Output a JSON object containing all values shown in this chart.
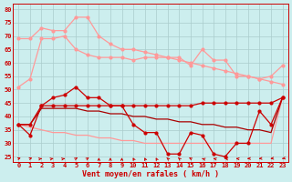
{
  "x": [
    0,
    1,
    2,
    3,
    4,
    5,
    6,
    7,
    8,
    9,
    10,
    11,
    12,
    13,
    14,
    15,
    16,
    17,
    18,
    19,
    20,
    21,
    22,
    23
  ],
  "light1": [
    51,
    54,
    69,
    69,
    70,
    65,
    63,
    62,
    62,
    62,
    61,
    62,
    62,
    62,
    62,
    59,
    65,
    61,
    61,
    55,
    55,
    54,
    55,
    59
  ],
  "light2": [
    69,
    69,
    73,
    72,
    72,
    77,
    77,
    70,
    67,
    65,
    65,
    64,
    63,
    62,
    61,
    60,
    59,
    58,
    57,
    56,
    55,
    54,
    53,
    52
  ],
  "light3": [
    37,
    36,
    35,
    34,
    34,
    33,
    33,
    32,
    32,
    31,
    31,
    30,
    30,
    30,
    30,
    30,
    30,
    30,
    30,
    30,
    30,
    30,
    30,
    47
  ],
  "dark1": [
    37,
    33,
    44,
    47,
    48,
    51,
    47,
    47,
    44,
    44,
    37,
    34,
    34,
    26,
    26,
    34,
    33,
    26,
    25,
    30,
    30,
    42,
    37,
    47
  ],
  "dark2": [
    37,
    37,
    44,
    44,
    44,
    44,
    44,
    44,
    44,
    44,
    44,
    44,
    44,
    44,
    44,
    44,
    45,
    45,
    45,
    45,
    45,
    45,
    45,
    47
  ],
  "dark3": [
    37,
    37,
    43,
    43,
    43,
    43,
    42,
    42,
    41,
    41,
    40,
    40,
    39,
    39,
    38,
    38,
    37,
    37,
    36,
    36,
    35,
    35,
    34,
    47
  ],
  "arrow_angles": [
    45,
    45,
    60,
    60,
    60,
    30,
    30,
    0,
    0,
    0,
    350,
    350,
    350,
    340,
    340,
    330,
    310,
    300,
    300,
    290,
    270,
    260,
    250,
    240
  ],
  "color_light": "#FF9999",
  "color_dark": "#CC0000",
  "color_darkline": "#AA0000",
  "bg_color": "#CCEEEE",
  "grid_color": "#AACCCC",
  "xlabel": "Vent moyen/en rafales ( km/h )",
  "ylim": [
    23,
    82
  ],
  "yticks": [
    25,
    30,
    35,
    40,
    45,
    50,
    55,
    60,
    65,
    70,
    75,
    80
  ],
  "xticks": [
    0,
    1,
    2,
    3,
    4,
    5,
    6,
    7,
    8,
    9,
    10,
    11,
    12,
    13,
    14,
    15,
    16,
    17,
    18,
    19,
    20,
    21,
    22,
    23
  ]
}
